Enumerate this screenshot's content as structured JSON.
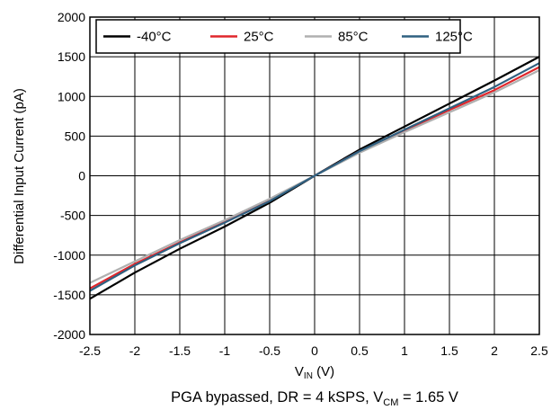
{
  "chart_data": {
    "type": "line",
    "xlabel": {
      "main": "V",
      "sub": "IN",
      "unit": " (V)"
    },
    "ylabel": "Differential Input Current (pA)",
    "caption": {
      "part1": "PGA bypassed, DR = 4 kSPS, V",
      "sub": "CM",
      "part2": " = 1.65 V"
    },
    "xlim": [
      -2.5,
      2.5
    ],
    "ylim": [
      -2000,
      2000
    ],
    "x_ticks": [
      -2.5,
      -2,
      -1.5,
      -1,
      -0.5,
      0,
      0.5,
      1,
      1.5,
      2,
      2.5
    ],
    "y_ticks": [
      -2000,
      -1500,
      -1000,
      -500,
      0,
      500,
      1000,
      1500,
      2000
    ],
    "grid": true,
    "legend_position": "top",
    "series": [
      {
        "name": "-40°C",
        "color": "#000000",
        "x": [
          -2.5,
          -2,
          -1.5,
          -1,
          -0.5,
          0,
          0.5,
          1,
          1.5,
          2,
          2.5
        ],
        "y": [
          -1550,
          -1220,
          -920,
          -640,
          -340,
          0,
          330,
          620,
          910,
          1200,
          1500
        ]
      },
      {
        "name": "25°C",
        "color": "#e0262b",
        "x": [
          -2.5,
          -2,
          -1.5,
          -1,
          -0.5,
          0,
          0.5,
          1,
          1.5,
          2,
          2.5
        ],
        "y": [
          -1420,
          -1110,
          -840,
          -580,
          -310,
          0,
          310,
          570,
          830,
          1080,
          1370
        ]
      },
      {
        "name": "85°C",
        "color": "#b0b0b0",
        "x": [
          -2.5,
          -2,
          -1.5,
          -1,
          -0.5,
          0,
          0.5,
          1,
          1.5,
          2,
          2.5
        ],
        "y": [
          -1350,
          -1080,
          -810,
          -560,
          -290,
          0,
          290,
          550,
          800,
          1050,
          1330
        ]
      },
      {
        "name": "125°C",
        "color": "#2f6080",
        "x": [
          -2.5,
          -2,
          -1.5,
          -1,
          -0.5,
          0,
          0.5,
          1,
          1.5,
          2,
          2.5
        ],
        "y": [
          -1450,
          -1130,
          -850,
          -590,
          -320,
          0,
          310,
          580,
          850,
          1120,
          1420
        ]
      }
    ]
  }
}
